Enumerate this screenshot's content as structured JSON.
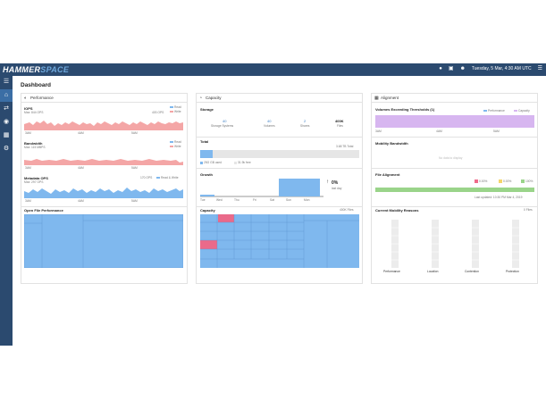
{
  "app": {
    "logo_part1": "HAMMER",
    "logo_part2": "SPACE",
    "page_title": "Dashboard"
  },
  "topbar": {
    "date": "Tuesday, 5 Mar, 4:30 AM UTC",
    "icons": [
      "bell-icon",
      "calendar-icon",
      "user-add-icon",
      "menu-icon"
    ]
  },
  "sidebar": {
    "items": [
      "menu-icon",
      "home-icon",
      "shuffle-icon",
      "globe-icon",
      "objects-icon",
      "gear-icon"
    ]
  },
  "performance": {
    "title": "Performance",
    "iops": {
      "label": "IOPS",
      "max": "Max: 844 OPS",
      "value": "403 OPS",
      "legend": [
        "Read",
        "Write"
      ]
    },
    "bandwidth": {
      "label": "Bandwidth",
      "max": "Max: 115 MBPS",
      "legend": [
        "Read",
        "Write"
      ]
    },
    "metadata": {
      "label": "Metadata OPS",
      "max": "Max: 297 OPS",
      "value": "170 OPS",
      "legend": "Read & Write"
    },
    "xticks": [
      "3AM",
      "4AM",
      "5AM"
    ],
    "open_file": {
      "title": "Open File Performance"
    }
  },
  "capacity": {
    "title": "Capacity",
    "storage": {
      "title": "Storage",
      "stats": [
        {
          "value": "40",
          "label": "Storage Systems"
        },
        {
          "value": "40",
          "label": "Volumes"
        },
        {
          "value": "2",
          "label": "Shares"
        },
        {
          "value": "400K",
          "label": "Files"
        }
      ]
    },
    "total": {
      "title": "Total",
      "value": "3.68 TB Total",
      "used": "25G GB used",
      "free": "31.9k free",
      "used_fraction": 0.08
    },
    "growth": {
      "title": "Growth",
      "pct": "0%",
      "period": "last day",
      "days": [
        "Tue",
        "Wed",
        "Thu",
        "Fri",
        "Sat",
        "Sun",
        "Mon"
      ]
    },
    "map": {
      "title": "Capacity",
      "count": "400K Files"
    }
  },
  "alignment": {
    "title": "Alignment",
    "volumes": {
      "title": "Volumes Exceeding Thresholds (1)",
      "legend": [
        "Performance",
        "Capacity"
      ],
      "xticks": [
        "3AM",
        "4AM",
        "5AM"
      ]
    },
    "mobility": {
      "title": "Mobility Bandwidth",
      "empty": "No data to display"
    },
    "file_alignment": {
      "title": "File Alignment",
      "legend": [
        "0.00%",
        "0.00%",
        "100%"
      ],
      "updated": "Last updated: 10:30 PM Mar 4, 2019"
    },
    "reasons": {
      "title": "Current Mobility Reasons",
      "count": "0 Files",
      "labels": [
        "Performance",
        "Location",
        "Contention",
        "Protection"
      ]
    }
  },
  "colors": {
    "read": "#f4a6a6",
    "write": "#7fb8ee",
    "nav": "#2b4a6f",
    "purple": "#d7b6f0",
    "green": "#9ad48a",
    "yellow": "#f4d56a",
    "pink": "#f06b8a"
  }
}
